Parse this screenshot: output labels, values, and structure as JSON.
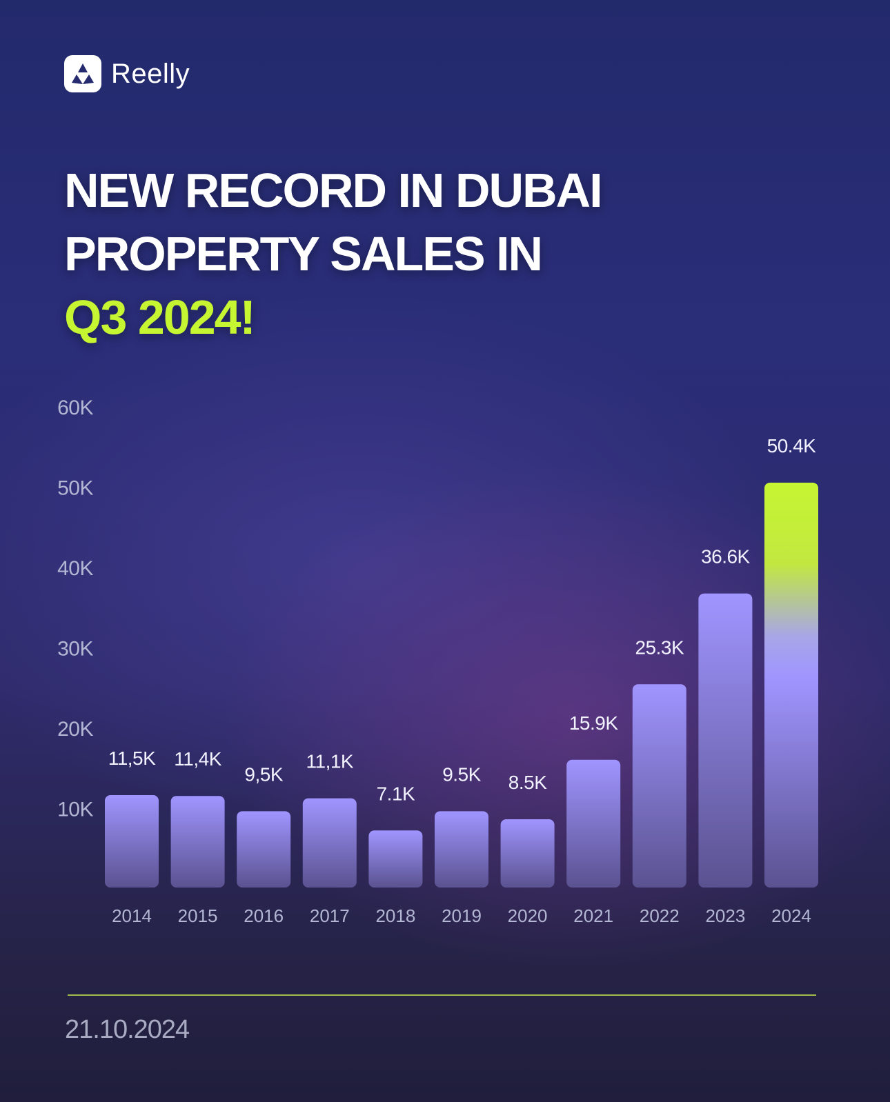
{
  "brand": {
    "name": "Reelly",
    "icon": "tri-petal-logo-icon"
  },
  "headline": {
    "line1": "NEW RECORD IN DUBAI",
    "line2": "PROPERTY SALES IN",
    "line3": "Q3 2024!"
  },
  "colors": {
    "accent": "#c6f532",
    "bar_top": "#a095ff",
    "bar_bottom": "#5a5290",
    "gridline": "#6a6cae",
    "tick_text": "#b4b7d4",
    "label_text": "#f2f2ff",
    "divider": "#b9d84a"
  },
  "chart_data": {
    "type": "bar",
    "title": "",
    "xlabel": "",
    "ylabel": "",
    "ylim": [
      0,
      60000
    ],
    "grid": true,
    "y_ticks": [
      {
        "value": 60000,
        "label": "60K"
      },
      {
        "value": 50000,
        "label": "50K"
      },
      {
        "value": 40000,
        "label": "40K"
      },
      {
        "value": 30000,
        "label": "30K"
      },
      {
        "value": 20000,
        "label": "20K"
      },
      {
        "value": 10000,
        "label": "10K"
      }
    ],
    "categories": [
      "2014",
      "2015",
      "2016",
      "2017",
      "2018",
      "2019",
      "2020",
      "2021",
      "2022",
      "2023",
      "2024"
    ],
    "values": [
      11500,
      11400,
      9500,
      11100,
      7100,
      9500,
      8500,
      15900,
      25300,
      36600,
      50400
    ],
    "data_labels": [
      "11,5K",
      "11,4K",
      "9,5K",
      "11,1K",
      "7.1K",
      "9.5K",
      "8.5K",
      "15.9K",
      "25.3K",
      "36.6K",
      "50.4K"
    ],
    "highlight_index": 10
  },
  "footer": {
    "date": "21.10.2024"
  }
}
